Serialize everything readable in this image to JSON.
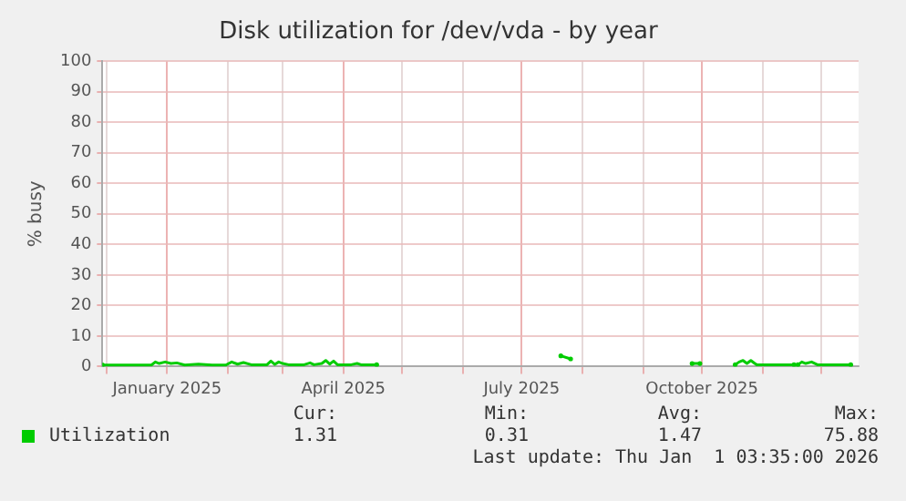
{
  "chart_data": {
    "type": "line",
    "title": "Disk utilization for /dev/vda - by year",
    "ylabel": "% busy",
    "x": [
      "2024-11-29",
      "2024-12-12",
      "2024-12-24",
      "2024-12-26",
      "2024-12-28",
      "2024-12-31",
      "2025-01-03",
      "2025-01-06",
      "2025-01-10",
      "2025-01-17",
      "2025-01-24",
      "2025-01-31",
      "2025-02-03",
      "2025-02-06",
      "2025-02-09",
      "2025-02-13",
      "2025-02-21",
      "2025-02-23",
      "2025-02-25",
      "2025-02-27",
      "2025-03-01",
      "2025-03-04",
      "2025-03-12",
      "2025-03-15",
      "2025-03-17",
      "2025-03-21",
      "2025-03-23",
      "2025-03-25",
      "2025-03-27",
      "2025-03-29",
      "2025-04-05",
      "2025-04-08",
      "2025-04-10",
      "2025-04-18",
      "2025-05-15",
      "2025-07-21",
      "2025-07-26",
      "2025-08-20",
      "2025-09-26",
      "2025-09-30",
      "2025-10-10",
      "2025-10-18",
      "2025-10-20",
      "2025-10-22",
      "2025-10-24",
      "2025-10-26",
      "2025-10-28",
      "2025-10-29",
      "2025-11-17",
      "2025-11-18",
      "2025-11-19",
      "2025-11-21",
      "2025-11-23",
      "2025-11-26",
      "2025-11-29",
      "2025-12-16"
    ],
    "series": [
      {
        "name": "Utilization",
        "color": "#00cc00",
        "values": [
          0.5,
          0.5,
          0.5,
          1.5,
          1.0,
          1.5,
          1.0,
          1.2,
          0.5,
          0.8,
          0.5,
          0.5,
          1.5,
          0.8,
          1.3,
          0.6,
          0.6,
          1.8,
          0.7,
          1.5,
          1.0,
          0.6,
          0.6,
          1.2,
          0.6,
          1.0,
          2.0,
          0.8,
          1.8,
          0.6,
          0.6,
          1.0,
          0.6,
          0.6,
          null,
          3.5,
          2.5,
          null,
          1.0,
          1.0,
          null,
          0.6,
          1.5,
          2.0,
          1.0,
          2.0,
          1.0,
          0.6,
          0.6,
          null,
          0.6,
          1.5,
          1.0,
          1.5,
          0.6,
          0.6
        ]
      }
    ],
    "xlim": [
      "2024-11-29",
      "2025-12-20"
    ],
    "xticks": [
      {
        "value": "2024-12-01",
        "label": null
      },
      {
        "value": "2025-01-01",
        "label": "January 2025"
      },
      {
        "value": "2025-02-01",
        "label": null
      },
      {
        "value": "2025-03-01",
        "label": null
      },
      {
        "value": "2025-04-01",
        "label": "April 2025"
      },
      {
        "value": "2025-05-01",
        "label": null
      },
      {
        "value": "2025-06-01",
        "label": null
      },
      {
        "value": "2025-07-01",
        "label": "July 2025"
      },
      {
        "value": "2025-08-01",
        "label": null
      },
      {
        "value": "2025-09-01",
        "label": null
      },
      {
        "value": "2025-10-01",
        "label": "October 2025"
      },
      {
        "value": "2025-11-01",
        "label": null
      },
      {
        "value": "2025-12-01",
        "label": null
      }
    ],
    "ylim": [
      0,
      100
    ],
    "yticks": [
      0,
      10,
      20,
      30,
      40,
      50,
      60,
      70,
      80,
      90,
      100
    ],
    "grid": true,
    "legend": "bottom left",
    "marker": "none",
    "line_style": "solid",
    "annotations": [
      "Cur:",
      "Min:",
      "Avg:",
      "Max:",
      "1.31",
      "0.31",
      "1.47",
      "75.88",
      "Last update: Thu Jan  1 03:35:00 2026"
    ]
  }
}
